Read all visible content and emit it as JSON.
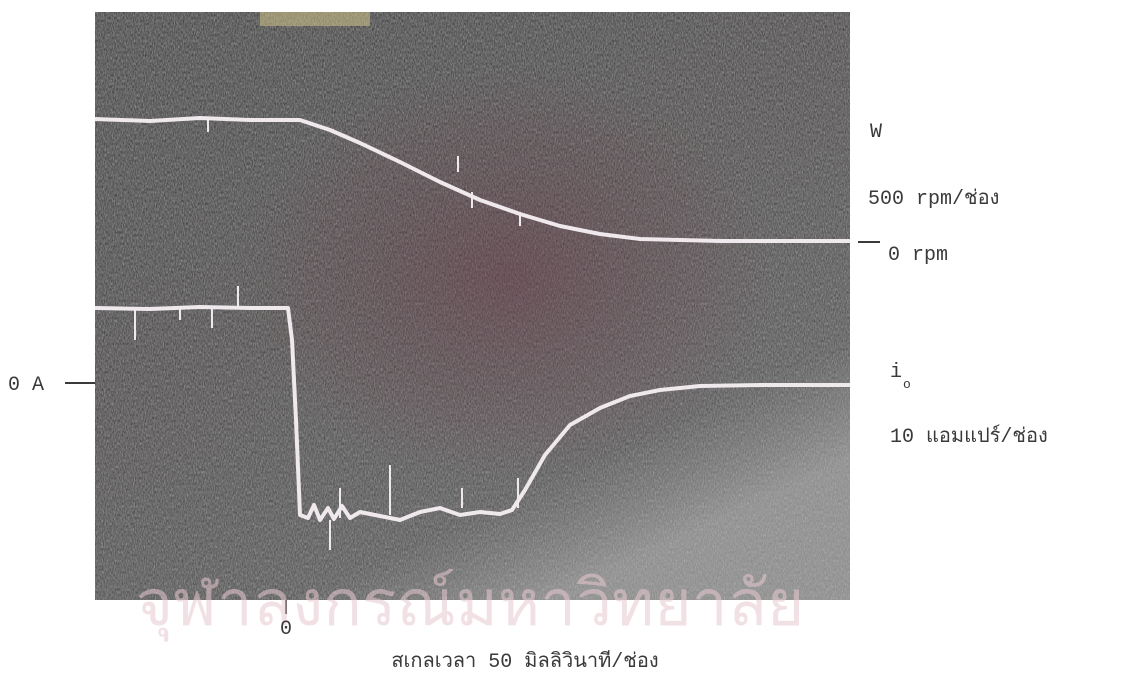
{
  "figure": {
    "speed_trace": {
      "name": "W",
      "scale": "500 rpm/ช่อง",
      "zero": "0 rpm"
    },
    "current_trace": {
      "name": "i",
      "subscript": "o",
      "scale": "10 แอมแปร์/ช่อง",
      "zero": "0 A"
    },
    "time_origin": "0",
    "caption": "สเกลเวลา 50 มิลลิวินาที/ช่อง",
    "watermark": "จุฬาลงกรณ์มหาวิทยาลัย"
  }
}
